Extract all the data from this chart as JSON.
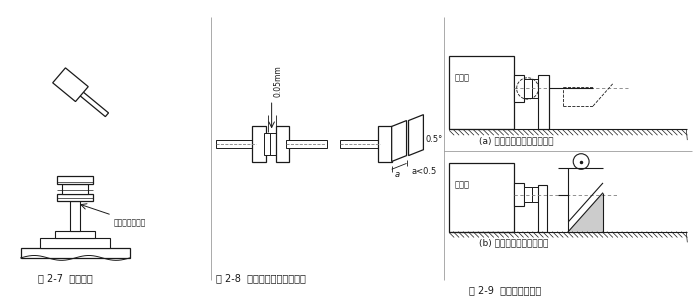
{
  "bg_color": "#ffffff",
  "fig_width": 7.0,
  "fig_height": 3.0,
  "caption1": "图 2-7  注意事项",
  "caption2": "图 2-8  联轴器之间的安装精度",
  "caption3": "图 2-9  安装精度的检查",
  "label_copper": "此处应垫一铜棒",
  "label_gap": "0.05mm",
  "label_angle": "0.5°",
  "label_a": "a",
  "label_a_val": "a<0.5",
  "label_sub_a": "(a) 用百分表检查联轴器端面",
  "label_sub_b": "(b) 用百分表检查支座端面",
  "label_motor_a": "原动机",
  "label_motor_b": "原动机",
  "line_color": "#1a1a1a",
  "text_color": "#1a1a1a"
}
